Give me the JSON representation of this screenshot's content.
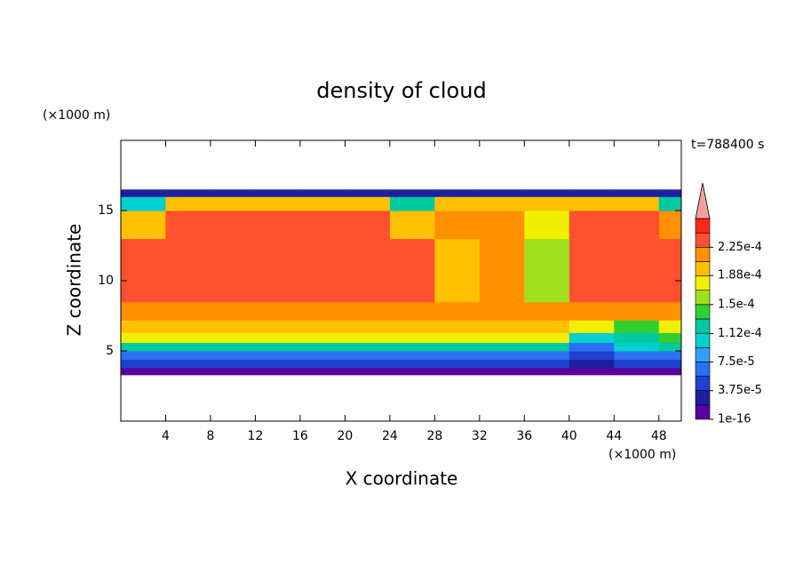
{
  "chart_data": {
    "type": "contour",
    "title": "density of cloud",
    "y_unit": "(×1000 m)",
    "x_unit": "(×1000 m)",
    "time_label": "t=788400 s",
    "x_label": "X coordinate",
    "y_label": "Z coordinate",
    "xlim": [
      0,
      50
    ],
    "ylim": [
      0,
      20
    ],
    "xticks": [
      4,
      8,
      12,
      16,
      20,
      24,
      28,
      32,
      36,
      40,
      44,
      48
    ],
    "yticks": [
      5,
      10,
      15
    ],
    "x_edges": [
      0,
      4,
      8,
      12,
      16,
      20,
      24,
      28,
      32,
      36,
      40,
      44,
      48,
      50
    ],
    "y_edges": [
      3.3,
      3.8,
      4.4,
      5,
      5.6,
      6.3,
      7.2,
      8.5,
      13,
      15,
      16,
      16.5
    ],
    "z": [
      [
        1e-05,
        1e-05,
        1e-05,
        1e-05,
        1e-05,
        1e-05,
        1e-05,
        1e-05,
        1e-05,
        1e-05,
        1e-05,
        1e-05,
        1e-05
      ],
      [
        4e-05,
        4e-05,
        4e-05,
        4e-05,
        4e-05,
        4e-05,
        4e-05,
        4e-05,
        4e-05,
        4e-05,
        3e-05,
        4e-05,
        4e-05
      ],
      [
        7e-05,
        7e-05,
        7e-05,
        7e-05,
        7e-05,
        7e-05,
        7e-05,
        7e-05,
        7e-05,
        7e-05,
        4e-05,
        6e-05,
        7e-05
      ],
      [
        0.00013,
        0.00013,
        0.00013,
        0.00013,
        0.00013,
        0.00013,
        0.00013,
        0.00013,
        0.00013,
        0.00013,
        7e-05,
        0.0001,
        0.00012
      ],
      [
        0.00017,
        0.00017,
        0.00017,
        0.00017,
        0.00017,
        0.00017,
        0.00017,
        0.00017,
        0.00017,
        0.00017,
        0.00011,
        0.00012,
        0.00015
      ],
      [
        0.000195,
        0.000195,
        0.000195,
        0.000195,
        0.000195,
        0.000195,
        0.000195,
        0.000195,
        0.000195,
        0.000195,
        0.00018,
        0.00014,
        0.00018
      ],
      [
        0.00021,
        0.00021,
        0.00021,
        0.00021,
        0.00021,
        0.00021,
        0.00021,
        0.00021,
        0.00021,
        0.00021,
        0.00021,
        0.00021,
        0.00021
      ],
      [
        0.000235,
        0.000235,
        0.000235,
        0.000235,
        0.000235,
        0.000235,
        0.00023,
        0.0002,
        0.00022,
        0.00016,
        0.000235,
        0.000235,
        0.00023
      ],
      [
        0.0002,
        0.000235,
        0.000235,
        0.000235,
        0.000235,
        0.00023,
        0.0002,
        0.00021,
        0.00022,
        0.00017,
        0.00023,
        0.00023,
        0.00022
      ],
      [
        0.00011,
        0.0002,
        0.0002,
        0.0002,
        0.0002,
        0.00019,
        0.00012,
        0.00019,
        0.00019,
        0.00019,
        0.00019,
        0.00019,
        0.00013
      ],
      [
        3e-05,
        3e-05,
        3e-05,
        3e-05,
        3e-05,
        3e-05,
        3e-05,
        3e-05,
        3e-05,
        3e-05,
        3e-05,
        3e-05,
        3e-05
      ]
    ],
    "clim": [
      1e-16,
      0.0002625
    ],
    "colors": [
      "#5a00a0",
      "#1e1ea0",
      "#2040d0",
      "#2a70f0",
      "#30a0ff",
      "#00d0d0",
      "#00c8a0",
      "#30d030",
      "#a0e020",
      "#f0f000",
      "#ffc000",
      "#ff9000",
      "#ff5030",
      "#ff2a1a"
    ],
    "extend_color": "#f4a0a0",
    "cticks": [
      {
        "value": 1e-16,
        "label": "1e-16"
      },
      {
        "value": 3.75e-05,
        "label": "3.75e-5"
      },
      {
        "value": 7.5e-05,
        "label": "7.5e-5"
      },
      {
        "value": 0.000112,
        "label": "1.12e-4"
      },
      {
        "value": 0.00015,
        "label": "1.5e-4"
      },
      {
        "value": 0.000188,
        "label": "1.88e-4"
      },
      {
        "value": 0.000225,
        "label": "2.25e-4"
      }
    ]
  }
}
